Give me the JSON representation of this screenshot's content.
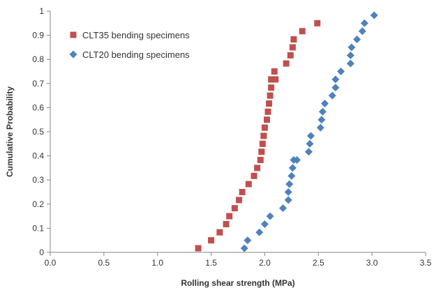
{
  "chart_data": {
    "type": "scatter",
    "xlabel": "Rolling shear strength (MPa)",
    "ylabel": "Cumulative Probability",
    "xlim": [
      0,
      3.5
    ],
    "ylim": [
      0,
      1
    ],
    "x_ticks": [
      "0.0",
      "0.5",
      "1.0",
      "1.5",
      "2.0",
      "2.5",
      "3.0",
      "3.5"
    ],
    "y_ticks": [
      "0",
      "0.1",
      "0.2",
      "0.3",
      "0.4",
      "0.5",
      "0.6",
      "0.7",
      "0.8",
      "0.9",
      "1"
    ],
    "grid": false,
    "legend_position": "top-left",
    "series": [
      {
        "name": "CLT35 bending specimens",
        "marker": "square",
        "color": "#c0504d",
        "x": [
          1.38,
          1.5,
          1.58,
          1.64,
          1.67,
          1.72,
          1.76,
          1.79,
          1.85,
          1.9,
          1.93,
          1.96,
          1.97,
          1.98,
          1.99,
          2.0,
          2.02,
          2.03,
          2.04,
          2.05,
          2.06,
          2.06,
          2.09,
          2.1,
          2.2,
          2.24,
          2.26,
          2.27,
          2.35,
          2.49
        ],
        "y": [
          0.017,
          0.05,
          0.083,
          0.117,
          0.15,
          0.183,
          0.217,
          0.25,
          0.283,
          0.317,
          0.35,
          0.383,
          0.417,
          0.45,
          0.483,
          0.517,
          0.55,
          0.583,
          0.617,
          0.65,
          0.683,
          0.717,
          0.75,
          0.717,
          0.783,
          0.817,
          0.85,
          0.883,
          0.917,
          0.95
        ]
      },
      {
        "name": "CLT20 bending specimens",
        "marker": "diamond",
        "color": "#4f81bd",
        "x": [
          1.81,
          1.84,
          1.95,
          2.0,
          2.05,
          2.17,
          2.22,
          2.22,
          2.23,
          2.25,
          2.26,
          2.27,
          2.3,
          2.41,
          2.42,
          2.43,
          2.52,
          2.53,
          2.54,
          2.56,
          2.63,
          2.66,
          2.66,
          2.71,
          2.8,
          2.8,
          2.81,
          2.86,
          2.91,
          2.93,
          3.02
        ],
        "y": [
          0.017,
          0.05,
          0.083,
          0.117,
          0.15,
          0.183,
          0.217,
          0.25,
          0.283,
          0.317,
          0.35,
          0.383,
          0.383,
          0.417,
          0.45,
          0.483,
          0.517,
          0.55,
          0.583,
          0.617,
          0.65,
          0.683,
          0.717,
          0.75,
          0.783,
          0.817,
          0.85,
          0.883,
          0.917,
          0.95,
          0.983
        ]
      }
    ]
  }
}
